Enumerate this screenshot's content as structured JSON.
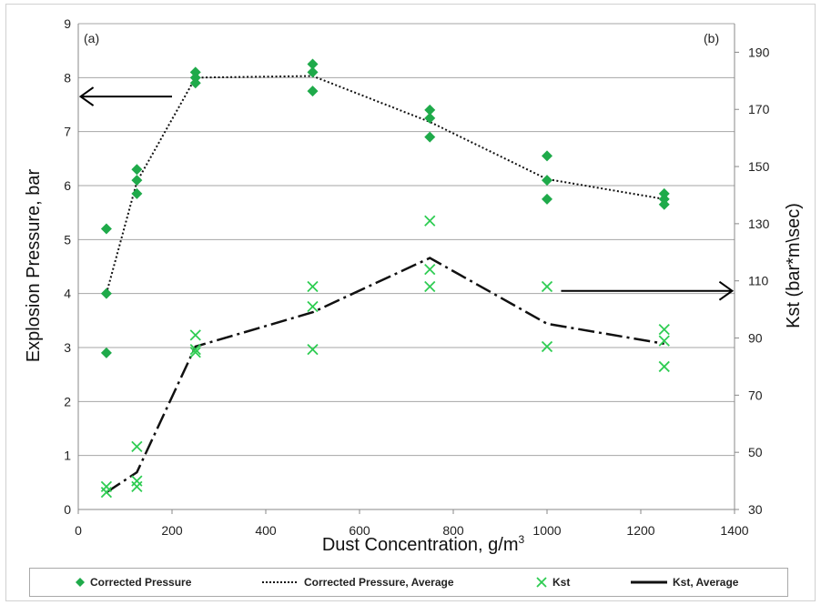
{
  "chart_data": {
    "type": "scatter",
    "panel_labels": [
      "(a)",
      "(b)"
    ],
    "xlabel": "Dust Concentration, g/m",
    "xlabel_superscript": "3",
    "ylabel_left": "Explosion Pressure,  bar",
    "ylabel_right": "Kst (bar*m\\sec)",
    "x_ticks": [
      "0",
      "200",
      "400",
      "600",
      "800",
      "1000",
      "1200",
      "1400"
    ],
    "y_left_ticks": [
      "0",
      "1",
      "2",
      "3",
      "4",
      "5",
      "6",
      "7",
      "8",
      "9"
    ],
    "y_right_ticks": [
      "30",
      "50",
      "70",
      "90",
      "110",
      "130",
      "150",
      "170",
      "190"
    ],
    "xlim": [
      0,
      1400
    ],
    "ylim_left": [
      0,
      9
    ],
    "ylim_right": [
      30,
      200
    ],
    "grid": "horizontal",
    "legend_position": "bottom",
    "colors": {
      "pressure": "#1faa4a",
      "kst": "#2ecc52",
      "line": "#111111",
      "arrow": "#000000"
    },
    "series": [
      {
        "name": "Corrected Pressure",
        "axis": "left",
        "marker": "diamond",
        "points": [
          [
            60,
            5.2
          ],
          [
            60,
            4.0
          ],
          [
            60,
            2.9
          ],
          [
            125,
            6.3
          ],
          [
            125,
            6.1
          ],
          [
            125,
            5.85
          ],
          [
            250,
            8.1
          ],
          [
            250,
            8.0
          ],
          [
            250,
            7.9
          ],
          [
            500,
            8.25
          ],
          [
            500,
            8.1
          ],
          [
            500,
            7.75
          ],
          [
            750,
            7.4
          ],
          [
            750,
            7.25
          ],
          [
            750,
            6.9
          ],
          [
            1000,
            6.55
          ],
          [
            1000,
            6.1
          ],
          [
            1000,
            5.75
          ],
          [
            1250,
            5.85
          ],
          [
            1250,
            5.75
          ],
          [
            1250,
            5.65
          ]
        ]
      },
      {
        "name": "Corrected Pressure, Average",
        "axis": "left",
        "style": "dotted",
        "points": [
          [
            60,
            4.0
          ],
          [
            125,
            6.07
          ],
          [
            250,
            8.0
          ],
          [
            500,
            8.03
          ],
          [
            750,
            7.18
          ],
          [
            1000,
            6.12
          ],
          [
            1250,
            5.75
          ]
        ]
      },
      {
        "name": "Kst",
        "axis": "right",
        "marker": "x",
        "points": [
          [
            60,
            38
          ],
          [
            60,
            36
          ],
          [
            125,
            52
          ],
          [
            125,
            40
          ],
          [
            125,
            38
          ],
          [
            250,
            91
          ],
          [
            250,
            86
          ],
          [
            250,
            85
          ],
          [
            500,
            108
          ],
          [
            500,
            101
          ],
          [
            500,
            86
          ],
          [
            750,
            131
          ],
          [
            750,
            114
          ],
          [
            750,
            108
          ],
          [
            1000,
            108
          ],
          [
            1000,
            87
          ],
          [
            1250,
            93
          ],
          [
            1250,
            89
          ],
          [
            1250,
            80
          ]
        ]
      },
      {
        "name": "Kst, Average",
        "axis": "right",
        "style": "dash-dot",
        "points": [
          [
            60,
            36
          ],
          [
            125,
            43
          ],
          [
            250,
            87
          ],
          [
            500,
            99
          ],
          [
            750,
            118
          ],
          [
            1000,
            95
          ],
          [
            1250,
            88
          ]
        ]
      }
    ],
    "annotations": [
      {
        "type": "arrow",
        "direction": "left",
        "from": [
          200,
          7.65
        ],
        "to": [
          5,
          7.65
        ],
        "axis": "left"
      },
      {
        "type": "arrow",
        "direction": "right",
        "from": [
          1030,
          4.05
        ],
        "to": [
          1395,
          4.05
        ],
        "axis": "left"
      }
    ]
  }
}
